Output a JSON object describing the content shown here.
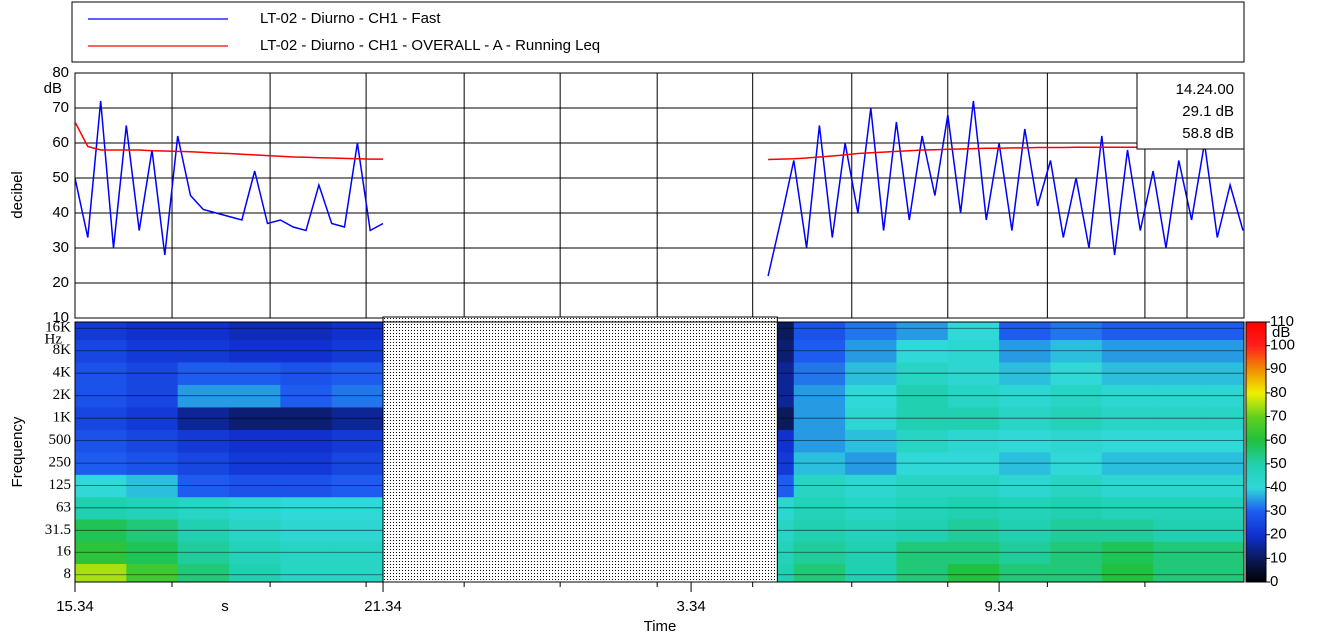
{
  "chart_data": [
    {
      "type": "line",
      "ylabel": "decibel",
      "yunit": "dB",
      "ylim": [
        10,
        80
      ],
      "yticks": [
        10,
        20,
        30,
        40,
        50,
        60,
        70,
        80
      ],
      "grid": true,
      "xlim": [
        0,
        22.77
      ],
      "x": [
        0,
        0.25,
        0.5,
        0.75,
        1,
        1.25,
        1.5,
        1.75,
        2,
        2.25,
        2.5,
        2.75,
        3,
        3.25,
        3.5,
        3.75,
        4,
        4.25,
        4.5,
        4.75,
        5,
        5.25,
        5.5,
        5.75,
        6,
        6.25,
        6.5,
        6.75,
        7,
        7.25,
        7.5,
        7.75,
        8,
        8.25,
        8.5,
        8.75,
        9,
        9.25,
        9.5,
        9.75,
        10,
        10.25,
        10.5,
        10.75,
        11,
        11.25,
        11.5,
        11.75,
        12,
        12.25,
        12.5,
        12.75,
        13,
        13.25,
        13.5,
        13.75,
        14,
        14.25,
        14.5,
        14.75,
        15,
        15.25,
        15.5,
        15.75,
        16,
        16.25,
        16.5,
        16.75,
        17,
        17.25,
        17.5,
        17.75,
        18,
        18.25,
        18.5,
        18.75,
        19,
        19.25,
        19.5,
        19.75,
        20,
        20.25,
        20.5,
        20.75,
        21,
        21.25,
        21.5,
        21.75,
        22,
        22.25,
        22.5,
        22.75
      ],
      "series": [
        {
          "name": "LT-02 - Diurno - CH1 - Fast",
          "color": "#0000ff",
          "values": [
            50,
            33,
            72,
            30,
            65,
            35,
            58,
            28,
            62,
            45,
            41,
            40,
            39,
            38,
            52,
            37,
            38,
            36,
            35,
            48,
            37,
            36,
            60,
            35,
            37,
            null,
            null,
            null,
            null,
            null,
            null,
            null,
            null,
            null,
            null,
            null,
            null,
            null,
            null,
            null,
            null,
            null,
            null,
            null,
            null,
            null,
            null,
            null,
            null,
            null,
            null,
            null,
            null,
            null,
            22,
            38,
            55,
            30,
            65,
            33,
            60,
            40,
            70,
            35,
            66,
            38,
            62,
            45,
            68,
            40,
            72,
            38,
            60,
            35,
            64,
            42,
            55,
            33,
            50,
            30,
            62,
            28,
            58,
            35,
            52,
            30,
            55,
            38,
            60,
            33,
            48,
            35
          ]
        },
        {
          "name": "LT-02 - Diurno - CH1 - OVERALL - A - Running Leq",
          "color": "#ff0000",
          "values": [
            66,
            59,
            58,
            58,
            58,
            58,
            57.8,
            57.7,
            57.6,
            57.5,
            57.3,
            57.1,
            57,
            56.8,
            56.6,
            56.4,
            56.2,
            56,
            55.9,
            55.8,
            55.7,
            55.6,
            55.5,
            55.4,
            55.4,
            null,
            null,
            null,
            null,
            null,
            null,
            null,
            null,
            null,
            null,
            null,
            null,
            null,
            null,
            null,
            null,
            null,
            null,
            null,
            null,
            null,
            null,
            null,
            null,
            null,
            null,
            null,
            null,
            null,
            55.3,
            55.4,
            55.5,
            55.7,
            56,
            56.3,
            56.6,
            57,
            57.2,
            57.4,
            57.6,
            57.8,
            58,
            58.1,
            58.2,
            58.3,
            58.4,
            58.5,
            58.5,
            58.6,
            58.6,
            58.7,
            58.7,
            58.7,
            58.8,
            58.8,
            58.8,
            58.8,
            58.8,
            58.8,
            58.8,
            58.8,
            58.8,
            58.8,
            58.8,
            58.8,
            58.8,
            58.8
          ]
        }
      ],
      "cursor": {
        "time": "14.24.00",
        "x": 21.66,
        "values": [
          29.1,
          58.8
        ],
        "value_labels": [
          "29.1 dB",
          "58.8 dB"
        ]
      }
    },
    {
      "type": "heatmap",
      "ylabel": "Frequency",
      "yunit": "Hz",
      "ylog": true,
      "xlabel": "Time",
      "xunit": "s",
      "xlim": [
        0,
        22.77
      ],
      "xticks": [
        {
          "value": 0,
          "label": "15.34"
        },
        {
          "value": 6,
          "label": "21.34"
        },
        {
          "value": 12,
          "label": "3.34"
        },
        {
          "value": 18,
          "label": "9.34"
        }
      ],
      "xminorticks": [
        1.89,
        3.8,
        5.67,
        7.58,
        9.45,
        11.34,
        13.2,
        15.13,
        17.0,
        18.94,
        20.84
      ],
      "ylim": [
        6.4,
        19400
      ],
      "yticks": [
        8,
        16,
        31.5,
        63,
        125,
        250,
        500,
        {
          "value": 1000,
          "label": "1K"
        },
        {
          "value": 2000,
          "label": "2K"
        },
        {
          "value": 4000,
          "label": "4K"
        },
        {
          "value": 8000,
          "label": "8K"
        },
        {
          "value": 16000,
          "label": "16K"
        }
      ],
      "x": [
        0.5,
        1.5,
        2.5,
        3.5,
        4.5,
        5.5,
        6.5,
        7.5,
        8.5,
        9.5,
        10.5,
        11.5,
        12.5,
        13.5,
        14.5,
        15.5,
        16.5,
        17.5,
        18.5,
        19.5,
        20.5,
        21.5,
        22.5
      ],
      "y": [
        8,
        16,
        31.5,
        63,
        125,
        250,
        500,
        1000,
        2000,
        4000,
        8000,
        16000
      ],
      "values": [
        [
          75,
          65,
          55,
          50,
          45,
          45,
          null,
          null,
          null,
          null,
          null,
          null,
          null,
          50,
          55,
          50,
          55,
          60,
          55,
          55,
          60,
          55,
          55
        ],
        [
          62,
          58,
          52,
          48,
          45,
          45,
          null,
          null,
          null,
          null,
          null,
          null,
          null,
          48,
          52,
          50,
          55,
          55,
          52,
          55,
          58,
          55,
          55
        ],
        [
          58,
          55,
          50,
          45,
          42,
          42,
          null,
          null,
          null,
          null,
          null,
          null,
          null,
          45,
          50,
          48,
          50,
          52,
          50,
          52,
          52,
          50,
          50
        ],
        [
          50,
          48,
          45,
          42,
          40,
          40,
          null,
          null,
          null,
          null,
          null,
          null,
          null,
          42,
          48,
          45,
          48,
          50,
          48,
          50,
          48,
          48,
          48
        ],
        [
          40,
          38,
          30,
          28,
          28,
          30,
          null,
          null,
          null,
          null,
          null,
          null,
          null,
          30,
          45,
          42,
          45,
          45,
          42,
          45,
          42,
          42,
          42
        ],
        [
          30,
          28,
          25,
          22,
          22,
          25,
          null,
          null,
          null,
          null,
          null,
          null,
          null,
          22,
          38,
          35,
          40,
          40,
          38,
          40,
          38,
          38,
          38
        ],
        [
          28,
          25,
          22,
          20,
          20,
          22,
          null,
          null,
          null,
          null,
          null,
          null,
          null,
          20,
          35,
          38,
          45,
          42,
          40,
          42,
          40,
          40,
          40
        ],
        [
          25,
          22,
          15,
          12,
          12,
          15,
          null,
          null,
          null,
          null,
          null,
          null,
          null,
          10,
          35,
          42,
          50,
          50,
          45,
          48,
          45,
          45,
          45
        ],
        [
          28,
          25,
          35,
          35,
          30,
          32,
          null,
          null,
          null,
          null,
          null,
          null,
          null,
          15,
          35,
          40,
          50,
          45,
          42,
          45,
          42,
          42,
          42
        ],
        [
          28,
          25,
          30,
          30,
          28,
          30,
          null,
          null,
          null,
          null,
          null,
          null,
          null,
          15,
          32,
          38,
          45,
          42,
          38,
          40,
          38,
          38,
          38
        ],
        [
          25,
          22,
          22,
          20,
          20,
          22,
          null,
          null,
          null,
          null,
          null,
          null,
          null,
          12,
          30,
          35,
          40,
          42,
          35,
          38,
          35,
          35,
          35
        ],
        [
          22,
          20,
          20,
          18,
          18,
          20,
          null,
          null,
          null,
          null,
          null,
          null,
          null,
          10,
          28,
          32,
          35,
          40,
          30,
          32,
          30,
          30,
          30
        ]
      ],
      "no_data": [
        6.0,
        13.68
      ],
      "clim": [
        0,
        110
      ],
      "cticks": [
        0,
        10,
        20,
        30,
        40,
        50,
        60,
        70,
        80,
        90,
        100,
        110
      ],
      "cunit": "dB",
      "colorscale": [
        [
          0,
          "#000000"
        ],
        [
          10,
          "#0a1a5a"
        ],
        [
          20,
          "#1030d0"
        ],
        [
          30,
          "#1e5cf0"
        ],
        [
          40,
          "#30d8d8"
        ],
        [
          50,
          "#20d0b0"
        ],
        [
          60,
          "#20c040"
        ],
        [
          70,
          "#60d020"
        ],
        [
          80,
          "#f0f000"
        ],
        [
          90,
          "#f09000"
        ],
        [
          100,
          "#ff2020"
        ],
        [
          110,
          "#ff0000"
        ]
      ]
    }
  ]
}
